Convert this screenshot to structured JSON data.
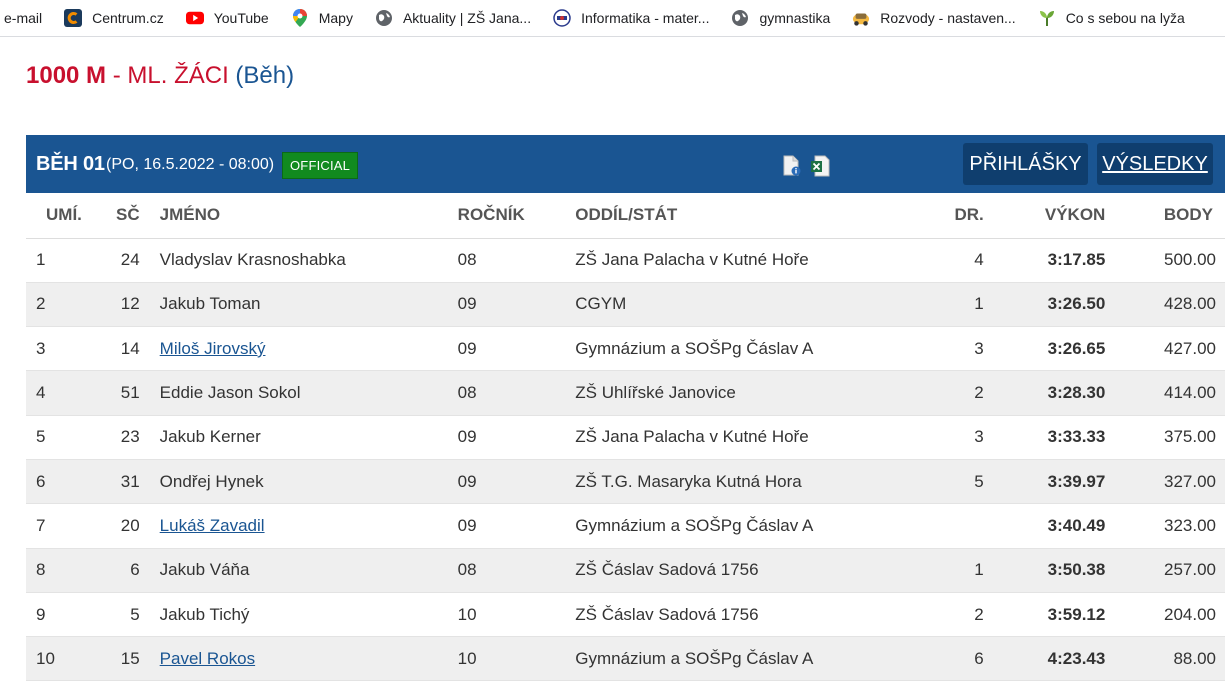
{
  "bookmarks": [
    {
      "label": "e-mail",
      "icon": "none"
    },
    {
      "label": "Centrum.cz",
      "icon": "centrum-icon"
    },
    {
      "label": "YouTube",
      "icon": "youtube-icon"
    },
    {
      "label": "Mapy",
      "icon": "maps-pin-icon"
    },
    {
      "label": "Aktuality | ZŠ Jana...",
      "icon": "globe-icon"
    },
    {
      "label": "Informatika - mater...",
      "icon": "school-logo-icon"
    },
    {
      "label": "gymnastika",
      "icon": "globe-icon"
    },
    {
      "label": "Rozvody - nastaven...",
      "icon": "car-icon"
    },
    {
      "label": "Co s sebou na lyža",
      "icon": "plant-icon"
    }
  ],
  "heading": {
    "distance": "1000 M",
    "separator": " - ",
    "category": "ML. ŽÁCI",
    "discipline": " (Běh)"
  },
  "heat": {
    "title": "BĚH 01",
    "datetime": "(PO, 16.5.2022 - 08:00)",
    "status": "OFFICIAL",
    "entries_button": "PŘIHLÁŠKY",
    "results_button": "VÝSLEDKY"
  },
  "table": {
    "headers": {
      "rank": "UMÍ.",
      "bib": "SČ",
      "name": "JMÉNO",
      "year": "ROČNÍK",
      "club": "ODDÍL/STÁT",
      "lane": "DR.",
      "performance": "VÝKON",
      "points": "BODY"
    },
    "rows": [
      {
        "rank": "1",
        "bib": "24",
        "name": "Vladyslav Krasnoshabka",
        "linked": false,
        "year": "08",
        "club": "ZŠ Jana Palacha v Kutné Hoře",
        "lane": "4",
        "performance": "3:17.85",
        "points": "500.00"
      },
      {
        "rank": "2",
        "bib": "12",
        "name": "Jakub Toman",
        "linked": false,
        "year": "09",
        "club": "CGYM",
        "lane": "1",
        "performance": "3:26.50",
        "points": "428.00"
      },
      {
        "rank": "3",
        "bib": "14",
        "name": "Miloš Jirovský",
        "linked": true,
        "year": "09",
        "club": "Gymnázium a SOŠPg Čáslav A",
        "lane": "3",
        "performance": "3:26.65",
        "points": "427.00"
      },
      {
        "rank": "4",
        "bib": "51",
        "name": "Eddie Jason Sokol",
        "linked": false,
        "year": "08",
        "club": "ZŠ Uhlířské Janovice",
        "lane": "2",
        "performance": "3:28.30",
        "points": "414.00"
      },
      {
        "rank": "5",
        "bib": "23",
        "name": "Jakub Kerner",
        "linked": false,
        "year": "09",
        "club": "ZŠ Jana Palacha v Kutné Hoře",
        "lane": "3",
        "performance": "3:33.33",
        "points": "375.00"
      },
      {
        "rank": "6",
        "bib": "31",
        "name": "Ondřej Hynek",
        "linked": false,
        "year": "09",
        "club": "ZŠ T.G. Masaryka Kutná Hora",
        "lane": "5",
        "performance": "3:39.97",
        "points": "327.00"
      },
      {
        "rank": "7",
        "bib": "20",
        "name": "Lukáš Zavadil",
        "linked": true,
        "year": "09",
        "club": "Gymnázium a SOŠPg Čáslav A",
        "lane": "",
        "performance": "3:40.49",
        "points": "323.00"
      },
      {
        "rank": "8",
        "bib": "6",
        "name": "Jakub Váňa",
        "linked": false,
        "year": "08",
        "club": "ZŠ Čáslav Sadová 1756",
        "lane": "1",
        "performance": "3:50.38",
        "points": "257.00"
      },
      {
        "rank": "9",
        "bib": "5",
        "name": "Jakub Tichý",
        "linked": false,
        "year": "10",
        "club": "ZŠ Čáslav Sadová 1756",
        "lane": "2",
        "performance": "3:59.12",
        "points": "204.00"
      },
      {
        "rank": "10",
        "bib": "15",
        "name": "Pavel Rokos",
        "linked": true,
        "year": "10",
        "club": "Gymnázium a SOŠPg Čáslav A",
        "lane": "6",
        "performance": "4:23.43",
        "points": "88.00"
      }
    ]
  },
  "colors": {
    "accent_red": "#c8102e",
    "header_blue": "#1a5592",
    "button_blue": "#0f3e6e",
    "official_green": "#118a1f",
    "stripe_gray": "#efefef"
  }
}
